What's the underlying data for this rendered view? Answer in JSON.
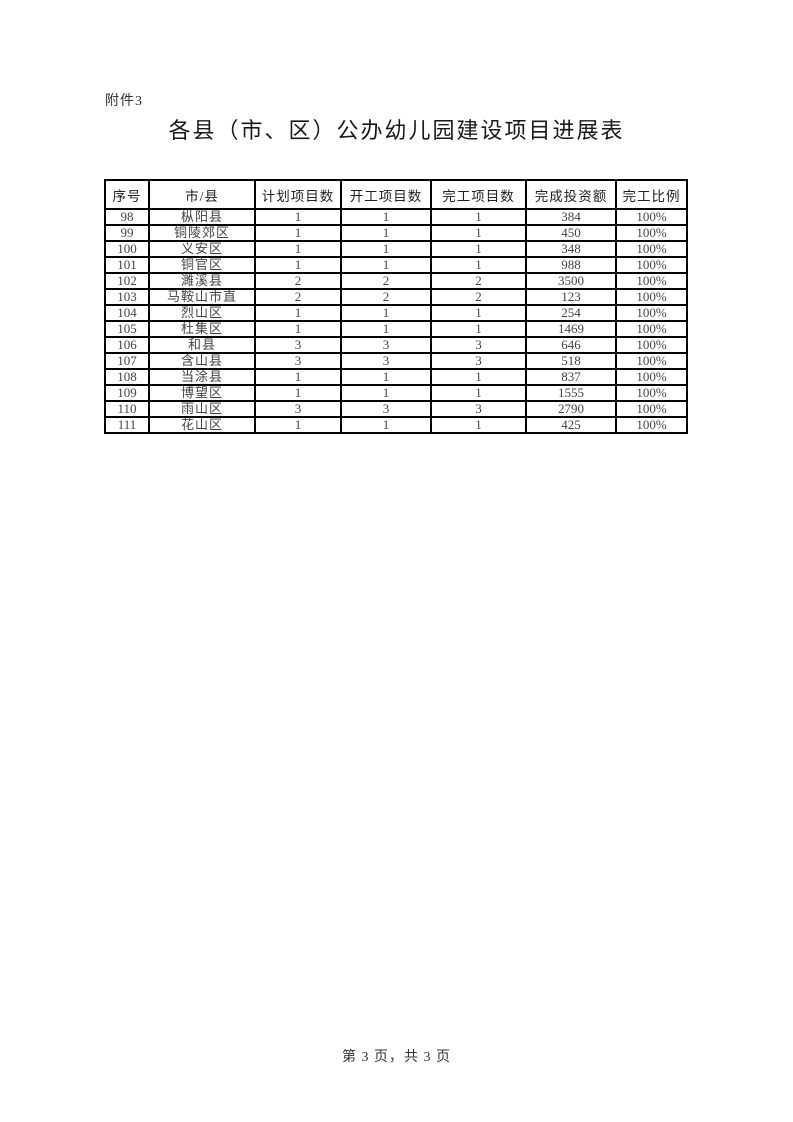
{
  "page": {
    "attachment_label": "附件3",
    "title": "各县（市、区）公办幼儿园建设项目进展表",
    "footer": "第 3 页，共 3 页"
  },
  "table": {
    "columns": [
      "序号",
      "市/县",
      "计划项目数",
      "开工项目数",
      "完工项目数",
      "完成投资额",
      "完工比例"
    ],
    "rows": [
      [
        "98",
        "枞阳县",
        "1",
        "1",
        "1",
        "384",
        "100%"
      ],
      [
        "99",
        "铜陵郊区",
        "1",
        "1",
        "1",
        "450",
        "100%"
      ],
      [
        "100",
        "义安区",
        "1",
        "1",
        "1",
        "348",
        "100%"
      ],
      [
        "101",
        "铜官区",
        "1",
        "1",
        "1",
        "988",
        "100%"
      ],
      [
        "102",
        "濉溪县",
        "2",
        "2",
        "2",
        "3500",
        "100%"
      ],
      [
        "103",
        "马鞍山市直",
        "2",
        "2",
        "2",
        "123",
        "100%"
      ],
      [
        "104",
        "烈山区",
        "1",
        "1",
        "1",
        "254",
        "100%"
      ],
      [
        "105",
        "杜集区",
        "1",
        "1",
        "1",
        "1469",
        "100%"
      ],
      [
        "106",
        "和县",
        "3",
        "3",
        "3",
        "646",
        "100%"
      ],
      [
        "107",
        "含山县",
        "3",
        "3",
        "3",
        "518",
        "100%"
      ],
      [
        "108",
        "当涂县",
        "1",
        "1",
        "1",
        "837",
        "100%"
      ],
      [
        "109",
        "博望区",
        "1",
        "1",
        "1",
        "1555",
        "100%"
      ],
      [
        "110",
        "雨山区",
        "3",
        "3",
        "3",
        "2790",
        "100%"
      ],
      [
        "111",
        "花山区",
        "1",
        "1",
        "1",
        "425",
        "100%"
      ]
    ]
  }
}
